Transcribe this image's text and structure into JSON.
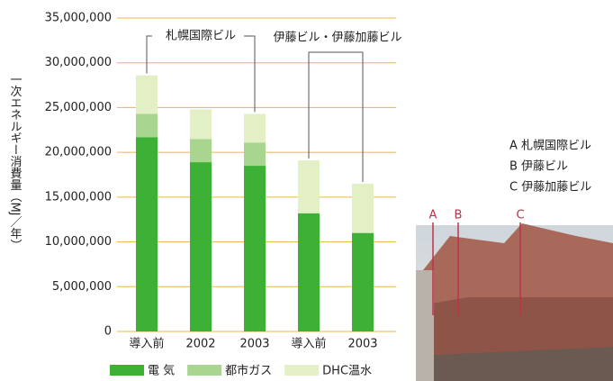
{
  "chart_data": {
    "type": "bar",
    "stacked": true,
    "ylabel": "一次エネルギー消費量（MJ／年）",
    "categories": [
      "導入前",
      "2002",
      "2003",
      "導入前",
      "2003"
    ],
    "series": [
      {
        "name": "電 気",
        "color": "#3db135",
        "values": [
          21700000,
          18900000,
          18500000,
          13200000,
          11000000
        ]
      },
      {
        "name": "都市ガス",
        "color": "#a9d68e",
        "values": [
          2600000,
          2600000,
          2600000,
          0,
          0
        ]
      },
      {
        "name": "DHC温水",
        "color": "#e3efc4",
        "values": [
          4300000,
          3300000,
          3200000,
          5900000,
          5500000
        ]
      }
    ],
    "ylim": [
      0,
      35000000
    ],
    "yticks": [
      0,
      {
        "value": 5000000,
        "label": "5,000,000"
      },
      {
        "value": 10000000,
        "label": "10,000,000"
      },
      {
        "value": 15000000,
        "label": "15,000,000"
      },
      {
        "value": 20000000,
        "label": "20,000,000"
      },
      {
        "value": 25000000,
        "label": "25,000,000"
      },
      {
        "value": 30000000,
        "label": "30,000,000"
      },
      {
        "value": 35000000,
        "label": "35,000,000"
      }
    ],
    "grid": true,
    "annotations": [
      "札幌国際ビル",
      "伊藤ビル・伊藤加藤ビル"
    ]
  },
  "photo": {
    "legend": [
      "A 札幌国際ビル",
      "B 伊藤ビル",
      "C 伊藤加藤ビル"
    ],
    "markers": [
      "A",
      "B",
      "C"
    ]
  }
}
